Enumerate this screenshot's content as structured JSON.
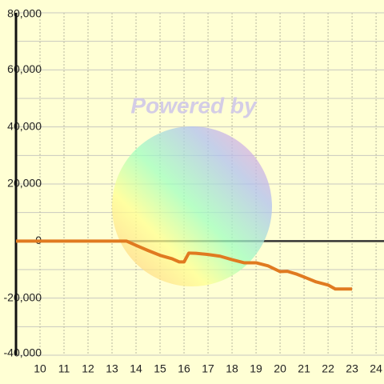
{
  "chart_data": {
    "type": "line",
    "watermark": "Powered by",
    "x": [
      9,
      13.6,
      14,
      14.5,
      15,
      15.5,
      15.8,
      16,
      16.2,
      16.5,
      17,
      17.5,
      18,
      18.5,
      19,
      19.5,
      20,
      20.3,
      20.7,
      21,
      21.5,
      22,
      22.3,
      22.6,
      23
    ],
    "series": [
      {
        "color": "#e07a20",
        "values": [
          0,
          0,
          -1500,
          -3300,
          -5000,
          -6200,
          -7300,
          -7300,
          -4200,
          -4300,
          -4700,
          -5300,
          -6500,
          -7600,
          -7600,
          -8700,
          -10700,
          -10600,
          -11600,
          -12600,
          -14300,
          -15400,
          -16800,
          -16800,
          -16800
        ]
      }
    ],
    "xlim": [
      9,
      24.33
    ],
    "ylim": [
      -40000,
      80000
    ],
    "xticks": [
      10,
      11,
      12,
      13,
      14,
      15,
      16,
      17,
      18,
      19,
      20,
      21,
      22,
      23,
      24
    ],
    "yticks": [
      {
        "value": 80000,
        "label": "80,000"
      },
      {
        "value": 60000,
        "label": "60,000"
      },
      {
        "value": 40000,
        "label": "40,000"
      },
      {
        "value": 20000,
        "label": "20,000"
      },
      0,
      {
        "value": -20000,
        "label": "-20,000"
      },
      {
        "value": -40000,
        "label": "-40,000"
      }
    ],
    "ygrid": [
      70000,
      50000,
      30000,
      10000,
      -10000,
      -30000
    ],
    "grid": true
  }
}
